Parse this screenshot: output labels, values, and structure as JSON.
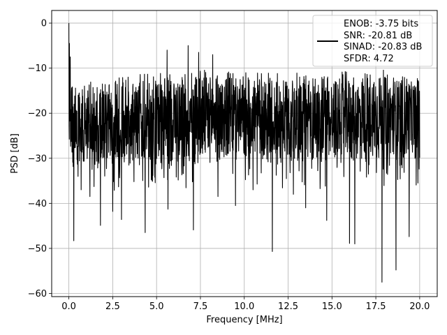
{
  "chart_data": {
    "type": "line",
    "title": "",
    "xlabel": "Frequency [MHz]",
    "ylabel": "PSD [dB]",
    "xlim": [
      -0.98,
      21.0
    ],
    "ylim": [
      -60.7,
      2.8
    ],
    "xticks": [
      0.0,
      2.5,
      5.0,
      7.5,
      10.0,
      12.5,
      15.0,
      17.5,
      20.0
    ],
    "xtick_labels": [
      "0.0",
      "2.5",
      "5.0",
      "7.5",
      "10.0",
      "12.5",
      "15.0",
      "17.5",
      "20.0"
    ],
    "yticks": [
      0,
      -10,
      -20,
      -30,
      -40,
      -50,
      -60
    ],
    "ytick_labels": [
      "0",
      "−10",
      "−20",
      "−30",
      "−40",
      "−50",
      "−60"
    ],
    "grid": true,
    "legend_position": "top-right",
    "legend_text": [
      "ENOB: -3.75 bits",
      "SNR: -20.81 dB",
      "SINAD: -20.83 dB",
      "SFDR: 4.72"
    ],
    "line_color": "#000000",
    "series": [
      {
        "noise_profile": {
          "x": [
            0.0,
            2.5,
            5.0,
            7.5,
            10.0,
            12.5,
            15.0,
            17.5,
            20.0
          ],
          "upper": [
            -14,
            -12,
            -11,
            -10,
            -11,
            -11,
            -11,
            -10,
            -12
          ],
          "lower": [
            -31,
            -32,
            -32,
            -31,
            -31,
            -31,
            -31,
            -31,
            -30
          ]
        },
        "peak": {
          "x": 0.0,
          "y": 0.0
        },
        "local_maxima": [
          {
            "x": 0.03,
            "y": -4.5
          },
          {
            "x": 0.08,
            "y": -7.5
          },
          {
            "x": 5.6,
            "y": -6.0
          },
          {
            "x": 6.8,
            "y": -5.0
          },
          {
            "x": 7.4,
            "y": -6.5
          },
          {
            "x": 8.2,
            "y": -7.0
          }
        ],
        "local_minima": [
          {
            "x": 0.28,
            "y": -48.3
          },
          {
            "x": 0.7,
            "y": -37.0
          },
          {
            "x": 1.2,
            "y": -38.5
          },
          {
            "x": 1.8,
            "y": -44.9
          },
          {
            "x": 2.5,
            "y": -41.8
          },
          {
            "x": 3.0,
            "y": -43.6
          },
          {
            "x": 4.35,
            "y": -46.5
          },
          {
            "x": 5.65,
            "y": -41.3
          },
          {
            "x": 7.1,
            "y": -45.9
          },
          {
            "x": 8.5,
            "y": -38.5
          },
          {
            "x": 9.5,
            "y": -40.5
          },
          {
            "x": 10.5,
            "y": -37.0
          },
          {
            "x": 11.6,
            "y": -50.7
          },
          {
            "x": 12.8,
            "y": -38.0
          },
          {
            "x": 13.5,
            "y": -41.0
          },
          {
            "x": 14.7,
            "y": -43.8
          },
          {
            "x": 16.0,
            "y": -48.9
          },
          {
            "x": 16.3,
            "y": -49.0
          },
          {
            "x": 17.85,
            "y": -57.5
          },
          {
            "x": 18.65,
            "y": -54.8
          },
          {
            "x": 19.4,
            "y": -47.4
          },
          {
            "x": 19.9,
            "y": -35.5
          }
        ]
      }
    ]
  }
}
